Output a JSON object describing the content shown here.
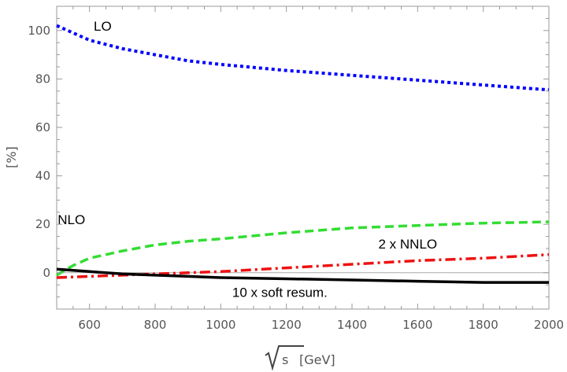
{
  "chart_data": {
    "type": "line",
    "xlabel": "√s [GeV]",
    "xlabel_unit": "[GeV]",
    "ylabel": "[%]",
    "xlim": [
      500,
      2000
    ],
    "ylim": [
      -15,
      110
    ],
    "x_ticks": [
      600,
      800,
      1000,
      1200,
      1400,
      1600,
      1800,
      2000
    ],
    "y_ticks": [
      0,
      20,
      40,
      60,
      80,
      100
    ],
    "grid": false,
    "zero_line": true,
    "series": [
      {
        "name": "LO",
        "color": "#0000ff",
        "style": "dotted",
        "x": [
          500,
          600,
          700,
          800,
          900,
          1000,
          1200,
          1400,
          1600,
          1800,
          2000
        ],
        "y": [
          102,
          96,
          92.5,
          90,
          87.5,
          86,
          83.5,
          81.5,
          79.5,
          77.5,
          75.5
        ]
      },
      {
        "name": "NLO",
        "color": "#33dd33",
        "style": "dashed",
        "x": [
          500,
          550,
          600,
          700,
          800,
          900,
          1000,
          1200,
          1400,
          1600,
          1800,
          2000
        ],
        "y": [
          -1,
          3,
          6,
          9,
          11.5,
          13,
          14,
          16.5,
          18.5,
          19.5,
          20.5,
          21
        ]
      },
      {
        "name": "2 x NNLO",
        "color": "#ee1111",
        "style": "dashdot",
        "x": [
          500,
          600,
          700,
          800,
          900,
          1000,
          1200,
          1400,
          1600,
          1800,
          2000
        ],
        "y": [
          -2,
          -1.5,
          -1,
          -0.5,
          0,
          0.5,
          2,
          3.5,
          5,
          6,
          7.5
        ]
      },
      {
        "name": "10 x soft resum.",
        "color": "#000000",
        "style": "solid",
        "x": [
          500,
          600,
          700,
          800,
          900,
          1000,
          1200,
          1400,
          1600,
          1800,
          2000
        ],
        "y": [
          1.5,
          0.5,
          -0.5,
          -1,
          -1.5,
          -2,
          -2.5,
          -3,
          -3.5,
          -4,
          -4
        ]
      }
    ],
    "annotations": [
      {
        "text": "LO",
        "x": 640,
        "y": 100
      },
      {
        "text": "NLO",
        "x": 545,
        "y": 20
      },
      {
        "text": "2 x NNLO",
        "x": 1570,
        "y": 10
      },
      {
        "text": "10 x soft resum.",
        "x": 1180,
        "y": -10
      }
    ]
  }
}
